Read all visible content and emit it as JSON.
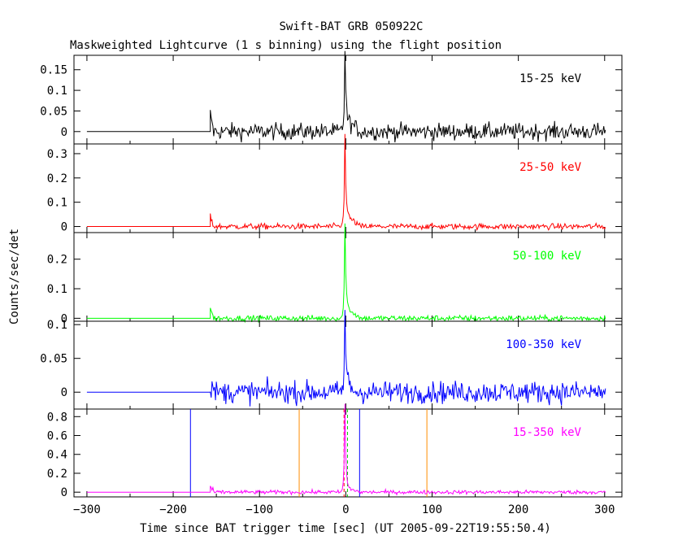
{
  "title": "Swift-BAT GRB 050922C",
  "subtitle": "Maskweighted Lightcurve (1 s binning) using the flight position",
  "xlabel": "Time since BAT trigger time [sec] (UT 2005-09-22T19:55:50.4)",
  "ylabel": "Counts/sec/det",
  "chart_data": [
    {
      "type": "line",
      "band": "15-25 keV",
      "color": "#000000",
      "xlim": [
        -315,
        320
      ],
      "ylim": [
        -0.03,
        0.185
      ],
      "yticks": [
        0,
        0.05,
        0.1,
        0.15
      ],
      "ytick_labels": [
        "0",
        "0.05",
        "0.1",
        "0.15"
      ],
      "profile": {
        "pre_level": 0,
        "start": -157,
        "start_spike": 0.035,
        "noise": 0.01,
        "peak_t": -1,
        "peak": 0.17,
        "tail_end": 18,
        "tail_level": 0.03
      }
    },
    {
      "type": "line",
      "band": "25-50 keV",
      "color": "#ff0000",
      "xlim": [
        -315,
        320
      ],
      "ylim": [
        -0.025,
        0.34
      ],
      "yticks": [
        0,
        0.1,
        0.2,
        0.3
      ],
      "ytick_labels": [
        "0",
        "0.1",
        "0.2",
        "0.3"
      ],
      "profile": {
        "pre_level": 0,
        "start": -157,
        "start_spike": 0.04,
        "noise": 0.006,
        "peak_t": -1,
        "peak": 0.34,
        "tail_end": 18,
        "tail_level": 0.05
      }
    },
    {
      "type": "line",
      "band": "50-100 keV",
      "color": "#00ff00",
      "xlim": [
        -315,
        320
      ],
      "ylim": [
        -0.01,
        0.29
      ],
      "yticks": [
        0,
        0.1,
        0.2
      ],
      "ytick_labels": [
        "0",
        "0.1",
        "0.2"
      ],
      "profile": {
        "pre_level": 0,
        "start": -157,
        "start_spike": 0.035,
        "noise": 0.005,
        "peak_t": -1,
        "peak": 0.29,
        "tail_end": 18,
        "tail_level": 0.04
      }
    },
    {
      "type": "line",
      "band": "100-350 keV",
      "color": "#0000ff",
      "xlim": [
        -315,
        320
      ],
      "ylim": [
        -0.025,
        0.105
      ],
      "yticks": [
        0,
        0.05,
        0.1
      ],
      "ytick_labels": [
        "0",
        "0.05",
        "0.1"
      ],
      "profile": {
        "pre_level": 0,
        "start": -157,
        "start_spike": 0.02,
        "noise": 0.008,
        "peak_t": -1,
        "peak": 0.1,
        "tail_end": 12,
        "tail_level": 0.02
      }
    },
    {
      "type": "line",
      "band": "15-350 keV",
      "color": "#ff00ff",
      "xlim": [
        -315,
        320
      ],
      "ylim": [
        -0.05,
        0.88
      ],
      "yticks": [
        0,
        0.2,
        0.4,
        0.6,
        0.8
      ],
      "ytick_labels": [
        "0",
        "0.2",
        "0.4",
        "0.6",
        "0.8"
      ],
      "xticks": [
        -300,
        -200,
        -100,
        0,
        100,
        200,
        300
      ],
      "xtick_labels": [
        "−300",
        "−200",
        "−100",
        "0",
        "100",
        "200",
        "300"
      ],
      "profile": {
        "pre_level": 0,
        "start": -157,
        "start_spike": 0.06,
        "noise": 0.01,
        "peak_t": -1,
        "peak": 0.88,
        "tail_end": 18,
        "tail_level": 0.05
      },
      "markers": [
        {
          "x": -180,
          "color": "#0000ff",
          "style": "solid"
        },
        {
          "x": 16,
          "color": "#0000ff",
          "style": "solid"
        },
        {
          "x": -54,
          "color": "#ff8c00",
          "style": "solid"
        },
        {
          "x": 94,
          "color": "#ff8c00",
          "style": "solid"
        },
        {
          "x": -2,
          "color": "#ff0000",
          "style": "dashed"
        },
        {
          "x": 2,
          "color": "#00cc00",
          "style": "dashed"
        }
      ]
    }
  ]
}
